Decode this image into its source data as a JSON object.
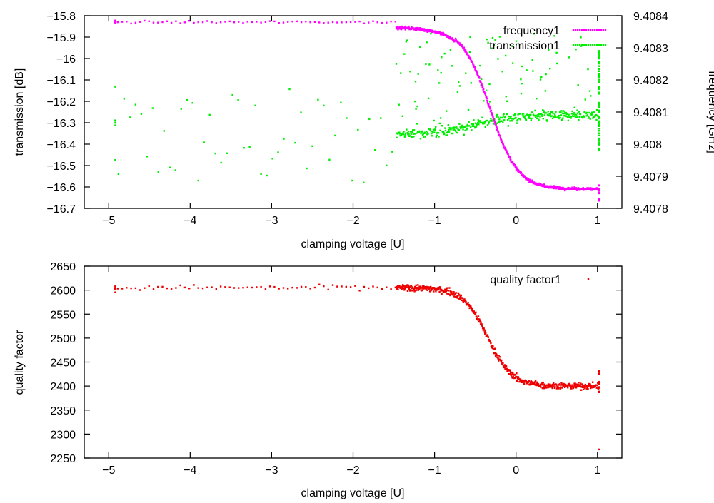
{
  "chart_data": [
    {
      "type": "scatter",
      "xlabel": "clamping voltage [U]",
      "ylabel": "transmission [dB]",
      "y2label": "frequency [GHz]",
      "xlim": [
        -5.3,
        1.3
      ],
      "ylim": [
        -16.7,
        -15.8
      ],
      "y2lim": [
        9.4078,
        9.4084
      ],
      "xticks": [
        "-5",
        "-4",
        "-3",
        "-2",
        "-1",
        "0",
        "1"
      ],
      "xtick_values": [
        -5,
        -4,
        -3,
        -2,
        -1,
        0,
        1
      ],
      "yticks": [
        "-15.8",
        "-15.9",
        "-16",
        "-16.1",
        "-16.2",
        "-16.3",
        "-16.4",
        "-16.5",
        "-16.6",
        "-16.7"
      ],
      "ytick_values": [
        -15.8,
        -15.9,
        -16.0,
        -16.1,
        -16.2,
        -16.3,
        -16.4,
        -16.5,
        -16.6,
        -16.7
      ],
      "y2ticks": [
        "9.4084",
        "9.4083",
        "9.4082",
        "9.4081",
        "9.408",
        "9.4079",
        "9.4078"
      ],
      "y2tick_values": [
        9.4084,
        9.4083,
        9.4082,
        9.4081,
        9.408,
        9.4079,
        9.4078
      ],
      "legend_position": "top-right",
      "series": [
        {
          "name": "frequency1",
          "color": "#ff00ff",
          "axis": "left",
          "model": "sigmoid",
          "sparse_x": [
            -4.92,
            1.02
          ],
          "dense_x": [
            -1.47,
            1.02
          ],
          "low_v_level": -15.83,
          "plateau_level": -15.855,
          "plateau_end": -0.75,
          "final_level": -16.61,
          "transition_center": -0.32,
          "transition_width": 0.17
        },
        {
          "name": "transmission1",
          "color": "#00ee00",
          "axis": "right",
          "model": "scatter-band",
          "sparse_x": [
            -4.92,
            -1.5
          ],
          "sparse_range": [
            9.40785,
            9.40818
          ],
          "dense_x": [
            -1.47,
            1.02
          ],
          "dense_start_center": 9.40803,
          "dense_end_center": 9.40809,
          "transition_center": -0.5,
          "outlier_range": [
            9.40805,
            9.40835
          ]
        }
      ]
    },
    {
      "type": "scatter",
      "xlabel": "clamping voltage [U]",
      "ylabel": "quality factor",
      "xlim": [
        -5.3,
        1.3
      ],
      "ylim": [
        2250,
        2650
      ],
      "xticks": [
        "-5",
        "-4",
        "-3",
        "-2",
        "-1",
        "0",
        "1"
      ],
      "xtick_values": [
        -5,
        -4,
        -3,
        -2,
        -1,
        0,
        1
      ],
      "yticks": [
        "2650",
        "2600",
        "2550",
        "2500",
        "2450",
        "2400",
        "2350",
        "2300",
        "2250"
      ],
      "ytick_values": [
        2650,
        2600,
        2550,
        2500,
        2450,
        2400,
        2350,
        2300,
        2250
      ],
      "legend_position": "top-right",
      "series": [
        {
          "name": "quality factor1",
          "color": "#ee0000",
          "axis": "left",
          "model": "sigmoid",
          "sparse_x": [
            -4.92,
            -1.5
          ],
          "dense_x": [
            -1.47,
            1.02
          ],
          "high_level": 2605,
          "low_level": 2400,
          "transition_center": -0.35,
          "transition_width": 0.15,
          "outlier": [
            1.02,
            2268
          ]
        }
      ]
    }
  ]
}
